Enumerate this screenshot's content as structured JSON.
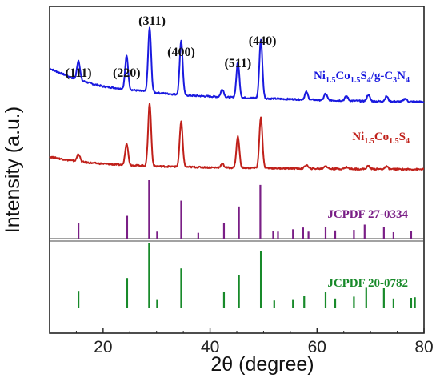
{
  "chart_data": {
    "type": "line",
    "xlabel_main": "2θ (degree)",
    "ylabel": "Intensity (a.u.)",
    "xlim": [
      10,
      80
    ],
    "xticks": [
      20,
      40,
      60,
      80
    ],
    "grid": false,
    "series": [
      {
        "name": "Ni1.5Co1.5S4/g-C3N4",
        "label_parts": [
          "Ni",
          "1.5",
          "Co",
          "1.5",
          "S",
          "4",
          "/g-C",
          "3",
          "N",
          "4"
        ],
        "color": "#1a1adf",
        "baseline": [
          [
            10,
            0.58
          ],
          [
            14,
            0.44
          ],
          [
            18,
            0.34
          ],
          [
            20,
            0.3
          ],
          [
            26,
            0.24
          ],
          [
            30,
            0.2
          ],
          [
            36,
            0.16
          ],
          [
            44,
            0.13
          ],
          [
            52,
            0.11
          ],
          [
            60,
            0.09
          ],
          [
            70,
            0.07
          ],
          [
            80,
            0.06
          ]
        ],
        "peaks": [
          [
            15.4,
            0.3
          ],
          [
            24.4,
            0.52
          ],
          [
            28.7,
            1.0
          ],
          [
            34.6,
            0.85
          ],
          [
            42.3,
            0.12
          ],
          [
            45.2,
            0.55
          ],
          [
            49.5,
            0.92
          ],
          [
            58.0,
            0.12
          ],
          [
            61.6,
            0.1
          ],
          [
            65.5,
            0.07
          ],
          [
            69.6,
            0.1
          ],
          [
            73.0,
            0.08
          ],
          [
            76.5,
            0.05
          ]
        ]
      },
      {
        "name": "Ni1.5Co1.5S4",
        "label_parts": [
          "Ni",
          "1.5",
          "Co",
          "1.5",
          "S",
          "4"
        ],
        "color": "#c0201a",
        "baseline": [
          [
            10,
            0.22
          ],
          [
            14,
            0.16
          ],
          [
            18,
            0.12
          ],
          [
            24,
            0.09
          ],
          [
            30,
            0.07
          ],
          [
            40,
            0.05
          ],
          [
            60,
            0.03
          ],
          [
            80,
            0.02
          ]
        ],
        "peaks": [
          [
            15.4,
            0.12
          ],
          [
            24.4,
            0.35
          ],
          [
            28.7,
            1.0
          ],
          [
            34.6,
            0.72
          ],
          [
            42.3,
            0.06
          ],
          [
            45.2,
            0.5
          ],
          [
            49.5,
            0.82
          ],
          [
            58.0,
            0.06
          ],
          [
            61.6,
            0.05
          ],
          [
            65.5,
            0.03
          ],
          [
            69.6,
            0.05
          ],
          [
            73.0,
            0.04
          ]
        ]
      }
    ],
    "reference_patterns": [
      {
        "name": "JCPDF 27-0334",
        "color": "#7a1f86",
        "lines": [
          [
            15.4,
            0.26
          ],
          [
            24.5,
            0.39
          ],
          [
            28.6,
            1.0
          ],
          [
            30.1,
            0.12
          ],
          [
            34.6,
            0.65
          ],
          [
            37.8,
            0.1
          ],
          [
            42.6,
            0.27
          ],
          [
            45.4,
            0.55
          ],
          [
            49.4,
            0.92
          ],
          [
            51.8,
            0.13
          ],
          [
            52.7,
            0.12
          ],
          [
            55.5,
            0.16
          ],
          [
            57.4,
            0.19
          ],
          [
            58.4,
            0.12
          ],
          [
            61.6,
            0.2
          ],
          [
            63.4,
            0.14
          ],
          [
            66.9,
            0.15
          ],
          [
            68.9,
            0.24
          ],
          [
            72.5,
            0.2
          ],
          [
            74.3,
            0.11
          ],
          [
            77.6,
            0.13
          ]
        ]
      },
      {
        "name": "JCPDF 20-0782",
        "color": "#188a2a",
        "lines": [
          [
            15.4,
            0.26
          ],
          [
            24.5,
            0.46
          ],
          [
            28.6,
            1.0
          ],
          [
            30.1,
            0.13
          ],
          [
            34.6,
            0.61
          ],
          [
            42.6,
            0.24
          ],
          [
            45.4,
            0.5
          ],
          [
            49.5,
            0.88
          ],
          [
            52.0,
            0.11
          ],
          [
            55.5,
            0.13
          ],
          [
            57.6,
            0.18
          ],
          [
            61.6,
            0.24
          ],
          [
            63.4,
            0.14
          ],
          [
            66.9,
            0.17
          ],
          [
            69.2,
            0.32
          ],
          [
            72.5,
            0.3
          ],
          [
            74.3,
            0.14
          ],
          [
            77.6,
            0.15
          ],
          [
            78.3,
            0.16
          ]
        ]
      }
    ],
    "peak_labels": [
      {
        "text": "(111)",
        "x": 15.4
      },
      {
        "text": "(220)",
        "x": 24.4
      },
      {
        "text": "(311)",
        "x": 28.7
      },
      {
        "text": "(400)",
        "x": 34.6
      },
      {
        "text": "(511)",
        "x": 45.2
      },
      {
        "text": "(440)",
        "x": 49.5
      }
    ]
  }
}
